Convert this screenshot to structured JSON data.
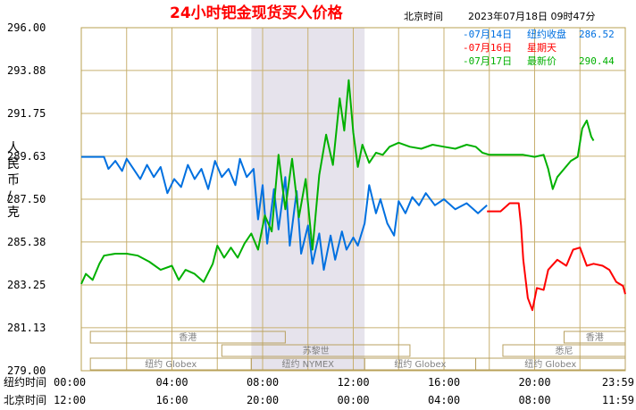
{
  "header": {
    "title": "24小时钯金现货买入价格",
    "tz_label": "北京时间",
    "timestamp": "2023年07月18日 09时47分"
  },
  "legend": [
    {
      "date": "-07月14日",
      "label": "纽约收盘",
      "value": "286.52",
      "color": "#0070e0"
    },
    {
      "date": "-07月16日",
      "label": "星期天",
      "value": "",
      "color": "#ff0000"
    },
    {
      "date": "-07月17日",
      "label": "最新价",
      "value": "290.44",
      "color": "#00b000"
    }
  ],
  "row_labels": {
    "ny": "纽约时间",
    "bj": "北京时间"
  },
  "sessions": [
    {
      "name": "香港"
    },
    {
      "name": "苏黎世"
    },
    {
      "name": "纽约 Globex"
    },
    {
      "name": "纽约 NYMEX"
    },
    {
      "name": "纽约 Globex"
    },
    {
      "name": "悉尼"
    },
    {
      "name": "香港"
    },
    {
      "name": "纽约 Globex"
    }
  ],
  "chart_data": {
    "type": "line",
    "ylabel": "人民币/克",
    "ylim": [
      279.0,
      296.0
    ],
    "y_ticks": [
      "296.00",
      "293.88",
      "291.75",
      "289.63",
      "287.50",
      "285.38",
      "283.25",
      "281.13",
      "279.00"
    ],
    "x_ticks_ny": [
      "00:00",
      "04:00",
      "08:00",
      "12:00",
      "16:00",
      "20:00",
      "23:59"
    ],
    "x_ticks_bj": [
      "12:00",
      "16:00",
      "20:00",
      "00:00",
      "04:00",
      "08:00",
      "11:59"
    ],
    "x_unit": "hours (NY time)",
    "xlim": [
      0,
      24
    ],
    "shaded_x": [
      7.5,
      12.5
    ],
    "grid": true,
    "series": [
      {
        "name": "07月14日 纽约收盘",
        "color": "#0070e0",
        "points": [
          [
            0,
            289.6
          ],
          [
            0.6,
            289.6
          ],
          [
            1.0,
            289.6
          ],
          [
            1.2,
            289.0
          ],
          [
            1.5,
            289.4
          ],
          [
            1.8,
            288.9
          ],
          [
            2.0,
            289.5
          ],
          [
            2.3,
            289.0
          ],
          [
            2.6,
            288.5
          ],
          [
            2.9,
            289.2
          ],
          [
            3.2,
            288.6
          ],
          [
            3.5,
            289.1
          ],
          [
            3.8,
            287.8
          ],
          [
            4.1,
            288.5
          ],
          [
            4.4,
            288.1
          ],
          [
            4.7,
            289.2
          ],
          [
            5.0,
            288.5
          ],
          [
            5.3,
            289.0
          ],
          [
            5.6,
            288.0
          ],
          [
            5.9,
            289.4
          ],
          [
            6.2,
            288.6
          ],
          [
            6.5,
            289.0
          ],
          [
            6.8,
            288.2
          ],
          [
            7.0,
            289.5
          ],
          [
            7.3,
            288.6
          ],
          [
            7.6,
            289.0
          ],
          [
            7.8,
            286.5
          ],
          [
            8.0,
            288.2
          ],
          [
            8.2,
            285.3
          ],
          [
            8.5,
            288.0
          ],
          [
            8.7,
            286.0
          ],
          [
            9.0,
            288.6
          ],
          [
            9.2,
            285.2
          ],
          [
            9.5,
            287.9
          ],
          [
            9.7,
            284.8
          ],
          [
            10.0,
            286.2
          ],
          [
            10.2,
            284.3
          ],
          [
            10.5,
            285.8
          ],
          [
            10.7,
            284.0
          ],
          [
            11.0,
            285.7
          ],
          [
            11.2,
            284.5
          ],
          [
            11.5,
            285.9
          ],
          [
            11.7,
            285.0
          ],
          [
            12.0,
            285.6
          ],
          [
            12.2,
            285.2
          ],
          [
            12.5,
            286.3
          ],
          [
            12.7,
            288.2
          ],
          [
            13.0,
            286.8
          ],
          [
            13.2,
            287.5
          ],
          [
            13.5,
            286.3
          ],
          [
            13.8,
            285.7
          ],
          [
            14.0,
            287.4
          ],
          [
            14.3,
            286.8
          ],
          [
            14.6,
            287.6
          ],
          [
            14.9,
            287.2
          ],
          [
            15.2,
            287.8
          ],
          [
            15.6,
            287.2
          ],
          [
            16.0,
            287.5
          ],
          [
            16.5,
            287.0
          ],
          [
            17.0,
            287.3
          ],
          [
            17.5,
            286.8
          ],
          [
            17.9,
            287.2
          ]
        ]
      },
      {
        "name": "07月16日 星期天",
        "color": "#ff0000",
        "points": [
          [
            17.9,
            286.9
          ],
          [
            18.5,
            286.9
          ],
          [
            18.9,
            287.3
          ],
          [
            19.3,
            287.3
          ],
          [
            19.4,
            286.2
          ],
          [
            19.5,
            284.5
          ],
          [
            19.7,
            282.6
          ],
          [
            19.9,
            282.0
          ],
          [
            20.1,
            283.1
          ],
          [
            20.4,
            283.0
          ],
          [
            20.6,
            284.0
          ],
          [
            21.0,
            284.5
          ],
          [
            21.4,
            284.2
          ],
          [
            21.7,
            285.0
          ],
          [
            22.0,
            285.1
          ],
          [
            22.3,
            284.2
          ],
          [
            22.6,
            284.3
          ],
          [
            23.0,
            284.2
          ],
          [
            23.3,
            284.0
          ],
          [
            23.6,
            283.4
          ],
          [
            23.9,
            283.2
          ],
          [
            24.0,
            282.8
          ]
        ]
      },
      {
        "name": "07月17日 最新价",
        "color": "#00b000",
        "points": [
          [
            0,
            283.3
          ],
          [
            0.2,
            283.8
          ],
          [
            0.5,
            283.5
          ],
          [
            0.8,
            284.3
          ],
          [
            1.0,
            284.7
          ],
          [
            1.5,
            284.8
          ],
          [
            2.0,
            284.8
          ],
          [
            2.5,
            284.7
          ],
          [
            3.0,
            284.4
          ],
          [
            3.5,
            284.0
          ],
          [
            4.0,
            284.2
          ],
          [
            4.3,
            283.5
          ],
          [
            4.6,
            284.0
          ],
          [
            5.0,
            283.8
          ],
          [
            5.4,
            283.4
          ],
          [
            5.8,
            284.3
          ],
          [
            6.0,
            285.2
          ],
          [
            6.3,
            284.6
          ],
          [
            6.6,
            285.1
          ],
          [
            6.9,
            284.6
          ],
          [
            7.2,
            285.3
          ],
          [
            7.5,
            285.8
          ],
          [
            7.8,
            285.0
          ],
          [
            8.1,
            286.7
          ],
          [
            8.4,
            285.9
          ],
          [
            8.7,
            289.7
          ],
          [
            9.0,
            287.0
          ],
          [
            9.3,
            289.5
          ],
          [
            9.6,
            286.6
          ],
          [
            9.9,
            288.5
          ],
          [
            10.2,
            285.0
          ],
          [
            10.5,
            288.7
          ],
          [
            10.8,
            290.7
          ],
          [
            11.1,
            289.2
          ],
          [
            11.4,
            292.5
          ],
          [
            11.6,
            290.9
          ],
          [
            11.8,
            293.4
          ],
          [
            12.0,
            290.8
          ],
          [
            12.2,
            289.1
          ],
          [
            12.4,
            290.2
          ],
          [
            12.7,
            289.3
          ],
          [
            13.0,
            289.8
          ],
          [
            13.3,
            289.7
          ],
          [
            13.6,
            290.1
          ],
          [
            14.0,
            290.3
          ],
          [
            14.5,
            290.1
          ],
          [
            15.0,
            290.0
          ],
          [
            15.5,
            290.2
          ],
          [
            16.0,
            290.1
          ],
          [
            16.5,
            290.0
          ],
          [
            17.0,
            290.2
          ],
          [
            17.4,
            290.1
          ],
          [
            17.7,
            289.8
          ],
          [
            18.0,
            289.7
          ],
          [
            18.5,
            289.7
          ],
          [
            19.0,
            289.7
          ],
          [
            19.5,
            289.7
          ],
          [
            20.0,
            289.6
          ],
          [
            20.4,
            289.7
          ],
          [
            20.6,
            289.0
          ],
          [
            20.8,
            288.0
          ],
          [
            21.0,
            288.6
          ],
          [
            21.3,
            289.0
          ],
          [
            21.6,
            289.4
          ],
          [
            21.9,
            289.6
          ],
          [
            22.1,
            291.0
          ],
          [
            22.3,
            291.4
          ],
          [
            22.5,
            290.6
          ],
          [
            22.6,
            290.4
          ]
        ]
      }
    ]
  }
}
